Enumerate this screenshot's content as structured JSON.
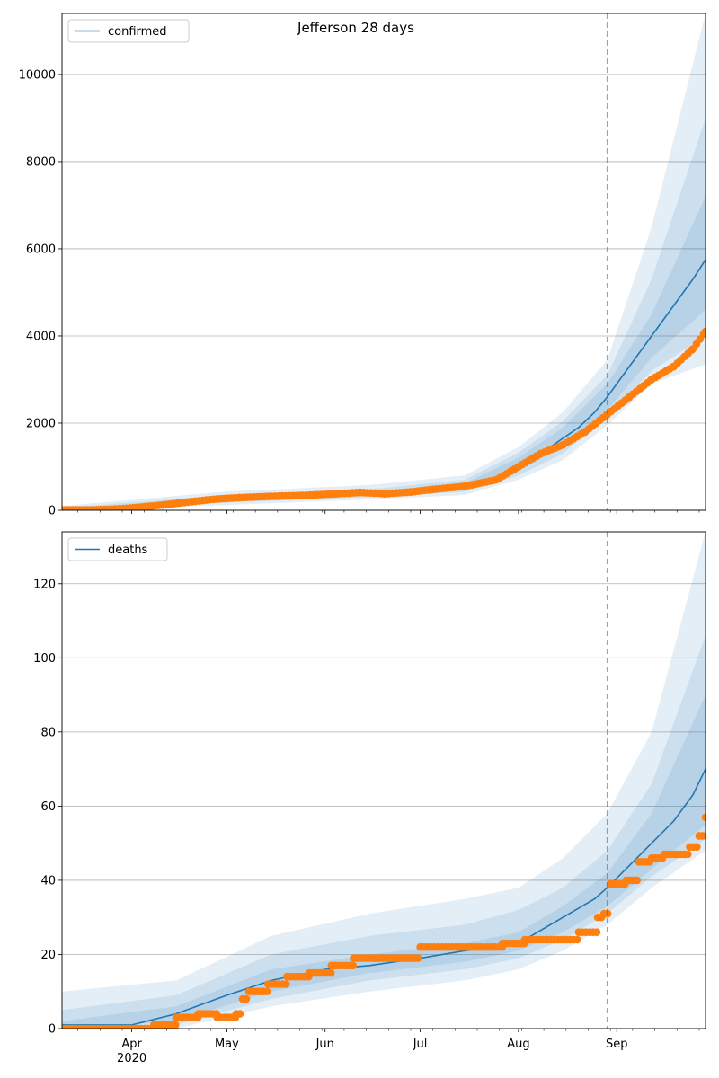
{
  "chart_data": [
    {
      "type": "line",
      "title": "Jefferson 28 days",
      "xlabel": "",
      "ylabel": "",
      "ylim": [
        0,
        11400
      ],
      "yticks": [
        0,
        2000,
        4000,
        6000,
        8000,
        10000
      ],
      "legend": {
        "label": "confirmed",
        "placement": "top-left"
      },
      "grid": "horizontal",
      "forecast_start": "2020-08-29",
      "model_median": {
        "x": [
          "2020-03-10",
          "2020-04-01",
          "2020-04-15",
          "2020-05-01",
          "2020-05-15",
          "2020-06-01",
          "2020-06-15",
          "2020-07-01",
          "2020-07-15",
          "2020-07-25",
          "2020-08-01",
          "2020-08-10",
          "2020-08-20",
          "2020-08-25",
          "2020-08-29",
          "2020-09-05",
          "2020-09-12",
          "2020-09-19",
          "2020-09-25",
          "2020-09-29"
        ],
        "values": [
          10,
          50,
          150,
          250,
          300,
          330,
          380,
          450,
          550,
          700,
          1050,
          1400,
          1900,
          2250,
          2600,
          3300,
          4000,
          4700,
          5300,
          5750
        ]
      },
      "band_inner": {
        "x": [
          "2020-03-10",
          "2020-05-01",
          "2020-06-15",
          "2020-07-15",
          "2020-08-01",
          "2020-08-15",
          "2020-08-29",
          "2020-09-12",
          "2020-09-29"
        ],
        "lower": [
          0,
          220,
          340,
          480,
          900,
          1450,
          2300,
          3500,
          4600
        ],
        "upper": [
          30,
          300,
          420,
          620,
          1200,
          1900,
          2900,
          4500,
          7200
        ]
      },
      "band_mid": {
        "x": [
          "2020-03-10",
          "2020-05-01",
          "2020-06-15",
          "2020-07-15",
          "2020-08-01",
          "2020-08-15",
          "2020-08-29",
          "2020-09-12",
          "2020-09-29"
        ],
        "lower": [
          0,
          180,
          300,
          420,
          800,
          1300,
          2150,
          3200,
          4000
        ],
        "upper": [
          60,
          350,
          480,
          700,
          1320,
          2050,
          3100,
          5300,
          9000
        ]
      },
      "band_outer": {
        "x": [
          "2020-03-10",
          "2020-05-01",
          "2020-06-15",
          "2020-07-15",
          "2020-08-01",
          "2020-08-15",
          "2020-08-29",
          "2020-09-12",
          "2020-09-29"
        ],
        "lower": [
          0,
          120,
          250,
          350,
          700,
          1150,
          1950,
          2900,
          3350
        ],
        "upper": [
          100,
          430,
          580,
          800,
          1450,
          2250,
          3450,
          6500,
          11400
        ]
      },
      "observed": {
        "x": [
          "2020-03-10",
          "2020-03-20",
          "2020-03-28",
          "2020-04-05",
          "2020-04-12",
          "2020-04-20",
          "2020-04-28",
          "2020-05-05",
          "2020-05-15",
          "2020-05-25",
          "2020-06-05",
          "2020-06-12",
          "2020-06-20",
          "2020-06-28",
          "2020-07-05",
          "2020-07-15",
          "2020-07-25",
          "2020-08-01",
          "2020-08-08",
          "2020-08-15",
          "2020-08-22",
          "2020-08-29",
          "2020-09-05",
          "2020-09-12",
          "2020-09-19",
          "2020-09-25",
          "2020-09-29"
        ],
        "values": [
          10,
          10,
          30,
          80,
          130,
          200,
          260,
          290,
          320,
          340,
          380,
          410,
          380,
          420,
          480,
          550,
          700,
          1000,
          1300,
          1500,
          1800,
          2200,
          2600,
          3000,
          3300,
          3700,
          4100
        ]
      }
    },
    {
      "type": "line",
      "title": "",
      "xlabel": "",
      "ylabel": "",
      "ylim": [
        0,
        134
      ],
      "yticks": [
        0,
        20,
        40,
        60,
        80,
        100,
        120
      ],
      "legend": {
        "label": "deaths",
        "placement": "top-left"
      },
      "grid": "horizontal",
      "forecast_start": "2020-08-29",
      "x_ticks": [
        {
          "date": "2020-04-01",
          "label": "Apr",
          "sublabel": "2020"
        },
        {
          "date": "2020-05-01",
          "label": "May",
          "sublabel": ""
        },
        {
          "date": "2020-06-01",
          "label": "Jun",
          "sublabel": ""
        },
        {
          "date": "2020-07-01",
          "label": "Jul",
          "sublabel": ""
        },
        {
          "date": "2020-08-01",
          "label": "Aug",
          "sublabel": ""
        },
        {
          "date": "2020-09-01",
          "label": "Sep",
          "sublabel": ""
        }
      ],
      "model_median": {
        "x": [
          "2020-03-10",
          "2020-04-01",
          "2020-04-15",
          "2020-05-01",
          "2020-05-15",
          "2020-06-01",
          "2020-06-15",
          "2020-07-01",
          "2020-07-15",
          "2020-08-01",
          "2020-08-15",
          "2020-08-25",
          "2020-08-29",
          "2020-09-05",
          "2020-09-12",
          "2020-09-19",
          "2020-09-25",
          "2020-09-29"
        ],
        "values": [
          1,
          1,
          4,
          9,
          13,
          16,
          17,
          19,
          21,
          23,
          30,
          35,
          38,
          44,
          50,
          56,
          63,
          70
        ]
      },
      "band_inner": {
        "x": [
          "2020-03-10",
          "2020-04-15",
          "2020-05-15",
          "2020-06-15",
          "2020-07-15",
          "2020-08-01",
          "2020-08-15",
          "2020-08-29",
          "2020-09-12",
          "2020-09-29"
        ],
        "lower": [
          0,
          2,
          10,
          15,
          18,
          21,
          26,
          33,
          43,
          55
        ],
        "upper": [
          2,
          6,
          16,
          20,
          23,
          26,
          33,
          42,
          58,
          90
        ]
      },
      "band_mid": {
        "x": [
          "2020-03-10",
          "2020-04-15",
          "2020-05-15",
          "2020-06-15",
          "2020-07-15",
          "2020-08-01",
          "2020-08-15",
          "2020-08-29",
          "2020-09-12",
          "2020-09-29"
        ],
        "lower": [
          0,
          1,
          8,
          13,
          16,
          19,
          24,
          31,
          41,
          51
        ],
        "upper": [
          5,
          9,
          20,
          25,
          28,
          32,
          38,
          48,
          66,
          106
        ]
      },
      "band_outer": {
        "x": [
          "2020-03-10",
          "2020-04-15",
          "2020-05-15",
          "2020-06-15",
          "2020-07-15",
          "2020-08-01",
          "2020-08-15",
          "2020-08-29",
          "2020-09-12",
          "2020-09-29"
        ],
        "lower": [
          0,
          0,
          6,
          10,
          13,
          16,
          21,
          28,
          38,
          48
        ],
        "upper": [
          10,
          13,
          25,
          31,
          35,
          38,
          46,
          58,
          80,
          134
        ]
      },
      "observed": {
        "x": [
          "2020-03-10",
          "2020-04-08",
          "2020-04-15",
          "2020-04-22",
          "2020-04-28",
          "2020-05-04",
          "2020-05-06",
          "2020-05-08",
          "2020-05-14",
          "2020-05-20",
          "2020-05-27",
          "2020-06-03",
          "2020-06-10",
          "2020-06-17",
          "2020-06-28",
          "2020-07-01",
          "2020-07-10",
          "2020-07-20",
          "2020-07-27",
          "2020-08-03",
          "2020-08-10",
          "2020-08-15",
          "2020-08-20",
          "2020-08-26",
          "2020-08-28",
          "2020-08-30",
          "2020-09-04",
          "2020-09-08",
          "2020-09-12",
          "2020-09-16",
          "2020-09-20",
          "2020-09-24",
          "2020-09-27",
          "2020-09-29"
        ],
        "values": [
          0,
          1,
          3,
          4,
          3,
          4,
          8,
          10,
          12,
          14,
          15,
          17,
          19,
          19,
          19,
          22,
          22,
          22,
          23,
          24,
          24,
          24,
          26,
          30,
          31,
          39,
          40,
          45,
          46,
          47,
          47,
          49,
          52,
          57
        ]
      }
    }
  ]
}
